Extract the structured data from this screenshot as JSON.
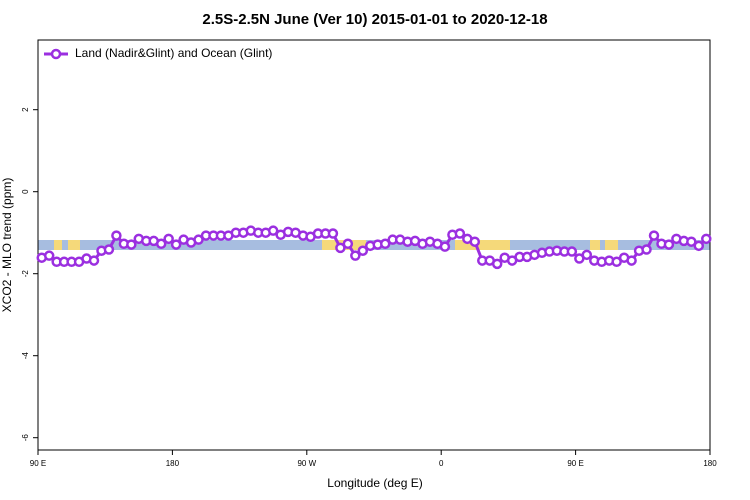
{
  "chart_data": {
    "type": "line",
    "title": "2.5S-2.5N June (Ver 10)   2015-01-01 to 2020-12-18",
    "xlabel": "Longitude (deg E)",
    "ylabel": "XCO2 - MLO trend (ppm)",
    "xlim": [
      90,
      540
    ],
    "xticks": [
      {
        "value": 90,
        "label": "90 E"
      },
      {
        "value": 180,
        "label": "180"
      },
      {
        "value": 270,
        "label": "90 W"
      },
      {
        "value": 360,
        "label": "0"
      },
      {
        "value": 450,
        "label": "90 E"
      },
      {
        "value": 540,
        "label": "180"
      }
    ],
    "ylim": [
      -6.3,
      3.7
    ],
    "yticks": [
      2,
      0,
      -2,
      -4,
      -6
    ],
    "legend": "upper left",
    "x": [
      92.5,
      97.5,
      102.5,
      107.5,
      112.5,
      117.5,
      122.5,
      127.5,
      132.5,
      137.5,
      142.5,
      147.5,
      152.5,
      157.5,
      162.5,
      167.5,
      172.5,
      177.5,
      182.5,
      187.5,
      192.5,
      197.5,
      202.5,
      207.5,
      212.5,
      217.5,
      222.5,
      227.5,
      232.5,
      237.5,
      242.5,
      247.5,
      252.5,
      257.5,
      262.5,
      267.5,
      272.5,
      277.5,
      282.5,
      287.5,
      292.5,
      297.5,
      302.5,
      307.5,
      312.5,
      317.5,
      322.5,
      327.5,
      332.5,
      337.5,
      342.5,
      347.5,
      352.5,
      357.5,
      362.5,
      367.5,
      372.5,
      377.5,
      382.5,
      387.5,
      392.5,
      397.5,
      402.5,
      407.5,
      412.5,
      417.5,
      422.5,
      427.5,
      432.5,
      437.5,
      442.5,
      447.5,
      452.5,
      457.5,
      462.5,
      467.5,
      472.5,
      477.5,
      482.5,
      487.5,
      492.5,
      497.5,
      502.5,
      507.5,
      512.5,
      517.5,
      522.5,
      527.5,
      532.5,
      537.5
    ],
    "series": [
      {
        "name": "Land (Nadir&Glint) and Ocean (Glint)",
        "color": "#9b2fe0",
        "values": [
          -1.61,
          -1.56,
          -1.71,
          -1.71,
          -1.71,
          -1.71,
          -1.63,
          -1.68,
          -1.44,
          -1.41,
          -1.07,
          -1.27,
          -1.29,
          -1.15,
          -1.2,
          -1.2,
          -1.27,
          -1.15,
          -1.29,
          -1.17,
          -1.24,
          -1.17,
          -1.07,
          -1.07,
          -1.07,
          -1.07,
          -1.0,
          -1.0,
          -0.95,
          -1.0,
          -1.0,
          -0.95,
          -1.05,
          -0.98,
          -1.0,
          -1.07,
          -1.1,
          -1.02,
          -1.02,
          -1.02,
          -1.37,
          -1.27,
          -1.56,
          -1.44,
          -1.32,
          -1.29,
          -1.27,
          -1.17,
          -1.17,
          -1.22,
          -1.2,
          -1.27,
          -1.22,
          -1.27,
          -1.34,
          -1.05,
          -1.02,
          -1.15,
          -1.22,
          -1.68,
          -1.68,
          -1.76,
          -1.61,
          -1.68,
          -1.59,
          -1.59,
          -1.54,
          -1.49,
          -1.46,
          -1.44,
          -1.46,
          -1.46,
          -1.63,
          -1.54,
          -1.68,
          -1.71,
          -1.68,
          -1.71,
          -1.61,
          -1.68,
          -1.44,
          -1.41,
          -1.07,
          -1.27,
          -1.29,
          -1.15,
          -1.2,
          -1.22,
          -1.32,
          -1.15
        ]
      }
    ]
  }
}
